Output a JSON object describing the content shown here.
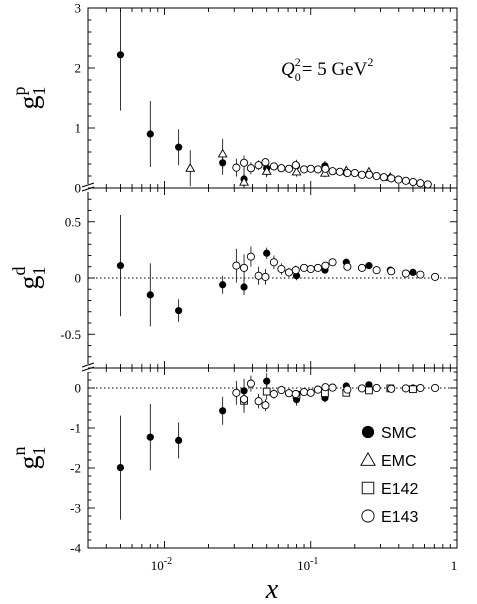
{
  "chart_data": {
    "type": "scatter",
    "x_axis": {
      "label": "x",
      "scale": "log",
      "range": [
        0.003,
        1.0
      ],
      "major_ticks": [
        {
          "value": 0.01,
          "base": "10",
          "exp": "-2"
        },
        {
          "value": 0.1,
          "base": "10",
          "exp": "-1"
        },
        {
          "value": 1,
          "base": "1",
          "exp": ""
        }
      ]
    },
    "annotation": {
      "text_q": "Q",
      "text_sub": "0",
      "text_sup": "2",
      "text_val": "= 5 GeV",
      "text_unit_sup": "2"
    },
    "panels": [
      {
        "name": "proton",
        "ylabel": {
          "base": "g",
          "sub": "1",
          "sup": "p"
        },
        "ylim": [
          0,
          3
        ],
        "yticks": [
          0,
          1,
          2,
          3
        ],
        "series": [
          {
            "name": "SMC",
            "marker": "filled-circle",
            "points": [
              {
                "x": 0.005,
                "y": 2.22,
                "err": 0.93
              },
              {
                "x": 0.008,
                "y": 0.9,
                "err": 0.55
              },
              {
                "x": 0.0125,
                "y": 0.68,
                "err": 0.3
              },
              {
                "x": 0.025,
                "y": 0.42,
                "err": 0.2
              },
              {
                "x": 0.035,
                "y": 0.15,
                "err": 0.18
              },
              {
                "x": 0.05,
                "y": 0.33,
                "err": 0.13
              },
              {
                "x": 0.08,
                "y": 0.37,
                "err": 0.1
              },
              {
                "x": 0.125,
                "y": 0.37,
                "err": 0.08
              },
              {
                "x": 0.175,
                "y": 0.25,
                "err": 0.07
              },
              {
                "x": 0.25,
                "y": 0.22,
                "err": 0.06
              },
              {
                "x": 0.35,
                "y": 0.17,
                "err": 0.05
              },
              {
                "x": 0.5,
                "y": 0.1,
                "err": 0.04
              }
            ]
          },
          {
            "name": "EMC",
            "marker": "open-triangle",
            "points": [
              {
                "x": 0.015,
                "y": 0.33,
                "err": 0.3
              },
              {
                "x": 0.025,
                "y": 0.57,
                "err": 0.25
              },
              {
                "x": 0.035,
                "y": 0.1,
                "err": 0.15
              },
              {
                "x": 0.05,
                "y": 0.28,
                "err": 0.1
              },
              {
                "x": 0.08,
                "y": 0.27,
                "err": 0.08
              },
              {
                "x": 0.125,
                "y": 0.25,
                "err": 0.07
              },
              {
                "x": 0.175,
                "y": 0.29,
                "err": 0.07
              },
              {
                "x": 0.25,
                "y": 0.27,
                "err": 0.06
              },
              {
                "x": 0.35,
                "y": 0.18,
                "err": 0.05
              }
            ]
          },
          {
            "name": "E143",
            "marker": "open-circle",
            "points": [
              {
                "x": 0.031,
                "y": 0.34,
                "err": 0.15
              },
              {
                "x": 0.035,
                "y": 0.42,
                "err": 0.12
              },
              {
                "x": 0.039,
                "y": 0.33,
                "err": 0.1
              },
              {
                "x": 0.044,
                "y": 0.38,
                "err": 0.08
              },
              {
                "x": 0.049,
                "y": 0.43,
                "err": 0.07
              },
              {
                "x": 0.056,
                "y": 0.36,
                "err": 0.06
              },
              {
                "x": 0.063,
                "y": 0.33,
                "err": 0.05
              },
              {
                "x": 0.071,
                "y": 0.32,
                "err": 0.05
              },
              {
                "x": 0.079,
                "y": 0.38,
                "err": 0.04
              },
              {
                "x": 0.09,
                "y": 0.31,
                "err": 0.04
              },
              {
                "x": 0.1,
                "y": 0.32,
                "err": 0.04
              },
              {
                "x": 0.112,
                "y": 0.31,
                "err": 0.03
              },
              {
                "x": 0.126,
                "y": 0.32,
                "err": 0.03
              },
              {
                "x": 0.141,
                "y": 0.28,
                "err": 0.03
              },
              {
                "x": 0.158,
                "y": 0.27,
                "err": 0.03
              },
              {
                "x": 0.178,
                "y": 0.25,
                "err": 0.03
              },
              {
                "x": 0.2,
                "y": 0.25,
                "err": 0.03
              },
              {
                "x": 0.224,
                "y": 0.22,
                "err": 0.02
              },
              {
                "x": 0.251,
                "y": 0.22,
                "err": 0.02
              },
              {
                "x": 0.282,
                "y": 0.2,
                "err": 0.02
              },
              {
                "x": 0.316,
                "y": 0.18,
                "err": 0.02
              },
              {
                "x": 0.355,
                "y": 0.16,
                "err": 0.02
              },
              {
                "x": 0.398,
                "y": 0.14,
                "err": 0.02
              },
              {
                "x": 0.447,
                "y": 0.12,
                "err": 0.02
              },
              {
                "x": 0.501,
                "y": 0.1,
                "err": 0.02
              },
              {
                "x": 0.562,
                "y": 0.08,
                "err": 0.02
              },
              {
                "x": 0.631,
                "y": 0.06,
                "err": 0.02
              }
            ]
          }
        ]
      },
      {
        "name": "deuteron",
        "ylabel": {
          "base": "g",
          "sub": "1",
          "sup": "d"
        },
        "ylim": [
          -0.8,
          0.8
        ],
        "yticks": [
          -0.5,
          0,
          0.5
        ],
        "ytick_labels": [
          "-0.5",
          "0",
          "0.5"
        ],
        "series": [
          {
            "name": "SMC",
            "marker": "filled-circle",
            "points": [
              {
                "x": 0.005,
                "y": 0.11,
                "err": 0.45
              },
              {
                "x": 0.008,
                "y": -0.15,
                "err": 0.28
              },
              {
                "x": 0.0125,
                "y": -0.29,
                "err": 0.1
              },
              {
                "x": 0.025,
                "y": -0.06,
                "err": 0.08
              },
              {
                "x": 0.035,
                "y": -0.08,
                "err": 0.07
              },
              {
                "x": 0.05,
                "y": 0.22,
                "err": 0.05
              },
              {
                "x": 0.08,
                "y": 0.02,
                "err": 0.04
              },
              {
                "x": 0.125,
                "y": 0.07,
                "err": 0.03
              },
              {
                "x": 0.175,
                "y": 0.14,
                "err": 0.03
              },
              {
                "x": 0.25,
                "y": 0.11,
                "err": 0.02
              },
              {
                "x": 0.35,
                "y": 0.07,
                "err": 0.02
              },
              {
                "x": 0.5,
                "y": 0.05,
                "err": 0.02
              }
            ]
          },
          {
            "name": "E143",
            "marker": "open-circle",
            "points": [
              {
                "x": 0.031,
                "y": 0.11,
                "err": 0.15
              },
              {
                "x": 0.035,
                "y": 0.09,
                "err": 0.12
              },
              {
                "x": 0.039,
                "y": 0.19,
                "err": 0.09
              },
              {
                "x": 0.044,
                "y": 0.02,
                "err": 0.08
              },
              {
                "x": 0.049,
                "y": 0.01,
                "err": 0.07
              },
              {
                "x": 0.056,
                "y": 0.14,
                "err": 0.06
              },
              {
                "x": 0.063,
                "y": 0.08,
                "err": 0.05
              },
              {
                "x": 0.071,
                "y": 0.05,
                "err": 0.04
              },
              {
                "x": 0.079,
                "y": 0.07,
                "err": 0.04
              },
              {
                "x": 0.09,
                "y": 0.09,
                "err": 0.03
              },
              {
                "x": 0.1,
                "y": 0.08,
                "err": 0.03
              },
              {
                "x": 0.112,
                "y": 0.09,
                "err": 0.03
              },
              {
                "x": 0.126,
                "y": 0.11,
                "err": 0.03
              },
              {
                "x": 0.141,
                "y": 0.14,
                "err": 0.02
              },
              {
                "x": 0.178,
                "y": 0.1,
                "err": 0.02
              },
              {
                "x": 0.224,
                "y": 0.09,
                "err": 0.02
              },
              {
                "x": 0.282,
                "y": 0.07,
                "err": 0.02
              },
              {
                "x": 0.355,
                "y": 0.06,
                "err": 0.02
              },
              {
                "x": 0.447,
                "y": 0.04,
                "err": 0.02
              },
              {
                "x": 0.562,
                "y": 0.03,
                "err": 0.02
              },
              {
                "x": 0.708,
                "y": 0.01,
                "err": 0.02
              }
            ]
          }
        ]
      },
      {
        "name": "neutron",
        "ylabel": {
          "base": "g",
          "sub": "1",
          "sup": "n"
        },
        "ylim": [
          -4,
          0.5
        ],
        "yticks": [
          -4,
          -3,
          -2,
          -1,
          0
        ],
        "ytick_labels": [
          "-4",
          "-3",
          "-2",
          "-1",
          "0"
        ],
        "series": [
          {
            "name": "SMC",
            "marker": "filled-circle",
            "points": [
              {
                "x": 0.005,
                "y": -1.99,
                "err": 1.3
              },
              {
                "x": 0.008,
                "y": -1.23,
                "err": 0.83
              },
              {
                "x": 0.0125,
                "y": -1.31,
                "err": 0.45
              },
              {
                "x": 0.025,
                "y": -0.57,
                "err": 0.35
              },
              {
                "x": 0.035,
                "y": -0.07,
                "err": 0.3
              },
              {
                "x": 0.05,
                "y": 0.17,
                "err": 0.2
              },
              {
                "x": 0.08,
                "y": -0.29,
                "err": 0.15
              },
              {
                "x": 0.125,
                "y": -0.25,
                "err": 0.1
              },
              {
                "x": 0.175,
                "y": 0.05,
                "err": 0.08
              },
              {
                "x": 0.25,
                "y": 0.08,
                "err": 0.06
              },
              {
                "x": 0.35,
                "y": 0.0,
                "err": 0.05
              },
              {
                "x": 0.5,
                "y": 0.0,
                "err": 0.04
              }
            ]
          },
          {
            "name": "E142",
            "marker": "open-square",
            "points": [
              {
                "x": 0.035,
                "y": -0.32,
                "err": 0.3
              },
              {
                "x": 0.05,
                "y": -0.09,
                "err": 0.2
              },
              {
                "x": 0.08,
                "y": -0.17,
                "err": 0.12
              },
              {
                "x": 0.125,
                "y": -0.13,
                "err": 0.08
              },
              {
                "x": 0.175,
                "y": -0.12,
                "err": 0.07
              },
              {
                "x": 0.25,
                "y": -0.06,
                "err": 0.06
              },
              {
                "x": 0.35,
                "y": -0.01,
                "err": 0.05
              },
              {
                "x": 0.5,
                "y": -0.03,
                "err": 0.04
              }
            ]
          },
          {
            "name": "E143",
            "marker": "open-circle",
            "points": [
              {
                "x": 0.031,
                "y": -0.12,
                "err": 0.3
              },
              {
                "x": 0.035,
                "y": -0.28,
                "err": 0.25
              },
              {
                "x": 0.039,
                "y": 0.11,
                "err": 0.2
              },
              {
                "x": 0.044,
                "y": -0.33,
                "err": 0.18
              },
              {
                "x": 0.049,
                "y": -0.43,
                "err": 0.15
              },
              {
                "x": 0.056,
                "y": -0.15,
                "err": 0.12
              },
              {
                "x": 0.063,
                "y": -0.05,
                "err": 0.1
              },
              {
                "x": 0.071,
                "y": -0.13,
                "err": 0.09
              },
              {
                "x": 0.079,
                "y": -0.15,
                "err": 0.08
              },
              {
                "x": 0.09,
                "y": -0.1,
                "err": 0.07
              },
              {
                "x": 0.1,
                "y": -0.12,
                "err": 0.06
              },
              {
                "x": 0.112,
                "y": -0.04,
                "err": 0.05
              },
              {
                "x": 0.126,
                "y": 0.02,
                "err": 0.05
              },
              {
                "x": 0.141,
                "y": 0.01,
                "err": 0.04
              },
              {
                "x": 0.178,
                "y": -0.04,
                "err": 0.04
              },
              {
                "x": 0.224,
                "y": -0.01,
                "err": 0.03
              },
              {
                "x": 0.282,
                "y": 0.0,
                "err": 0.03
              },
              {
                "x": 0.355,
                "y": -0.02,
                "err": 0.03
              },
              {
                "x": 0.447,
                "y": -0.01,
                "err": 0.03
              },
              {
                "x": 0.562,
                "y": 0.0,
                "err": 0.02
              },
              {
                "x": 0.708,
                "y": 0.0,
                "err": 0.02
              }
            ]
          }
        ]
      }
    ],
    "legend": {
      "placement": "bottom-right of lower panel",
      "entries": [
        {
          "label": "SMC",
          "marker": "filled-circle"
        },
        {
          "label": "EMC",
          "marker": "open-triangle"
        },
        {
          "label": "E142",
          "marker": "open-square"
        },
        {
          "label": "E143",
          "marker": "open-circle"
        }
      ]
    }
  }
}
